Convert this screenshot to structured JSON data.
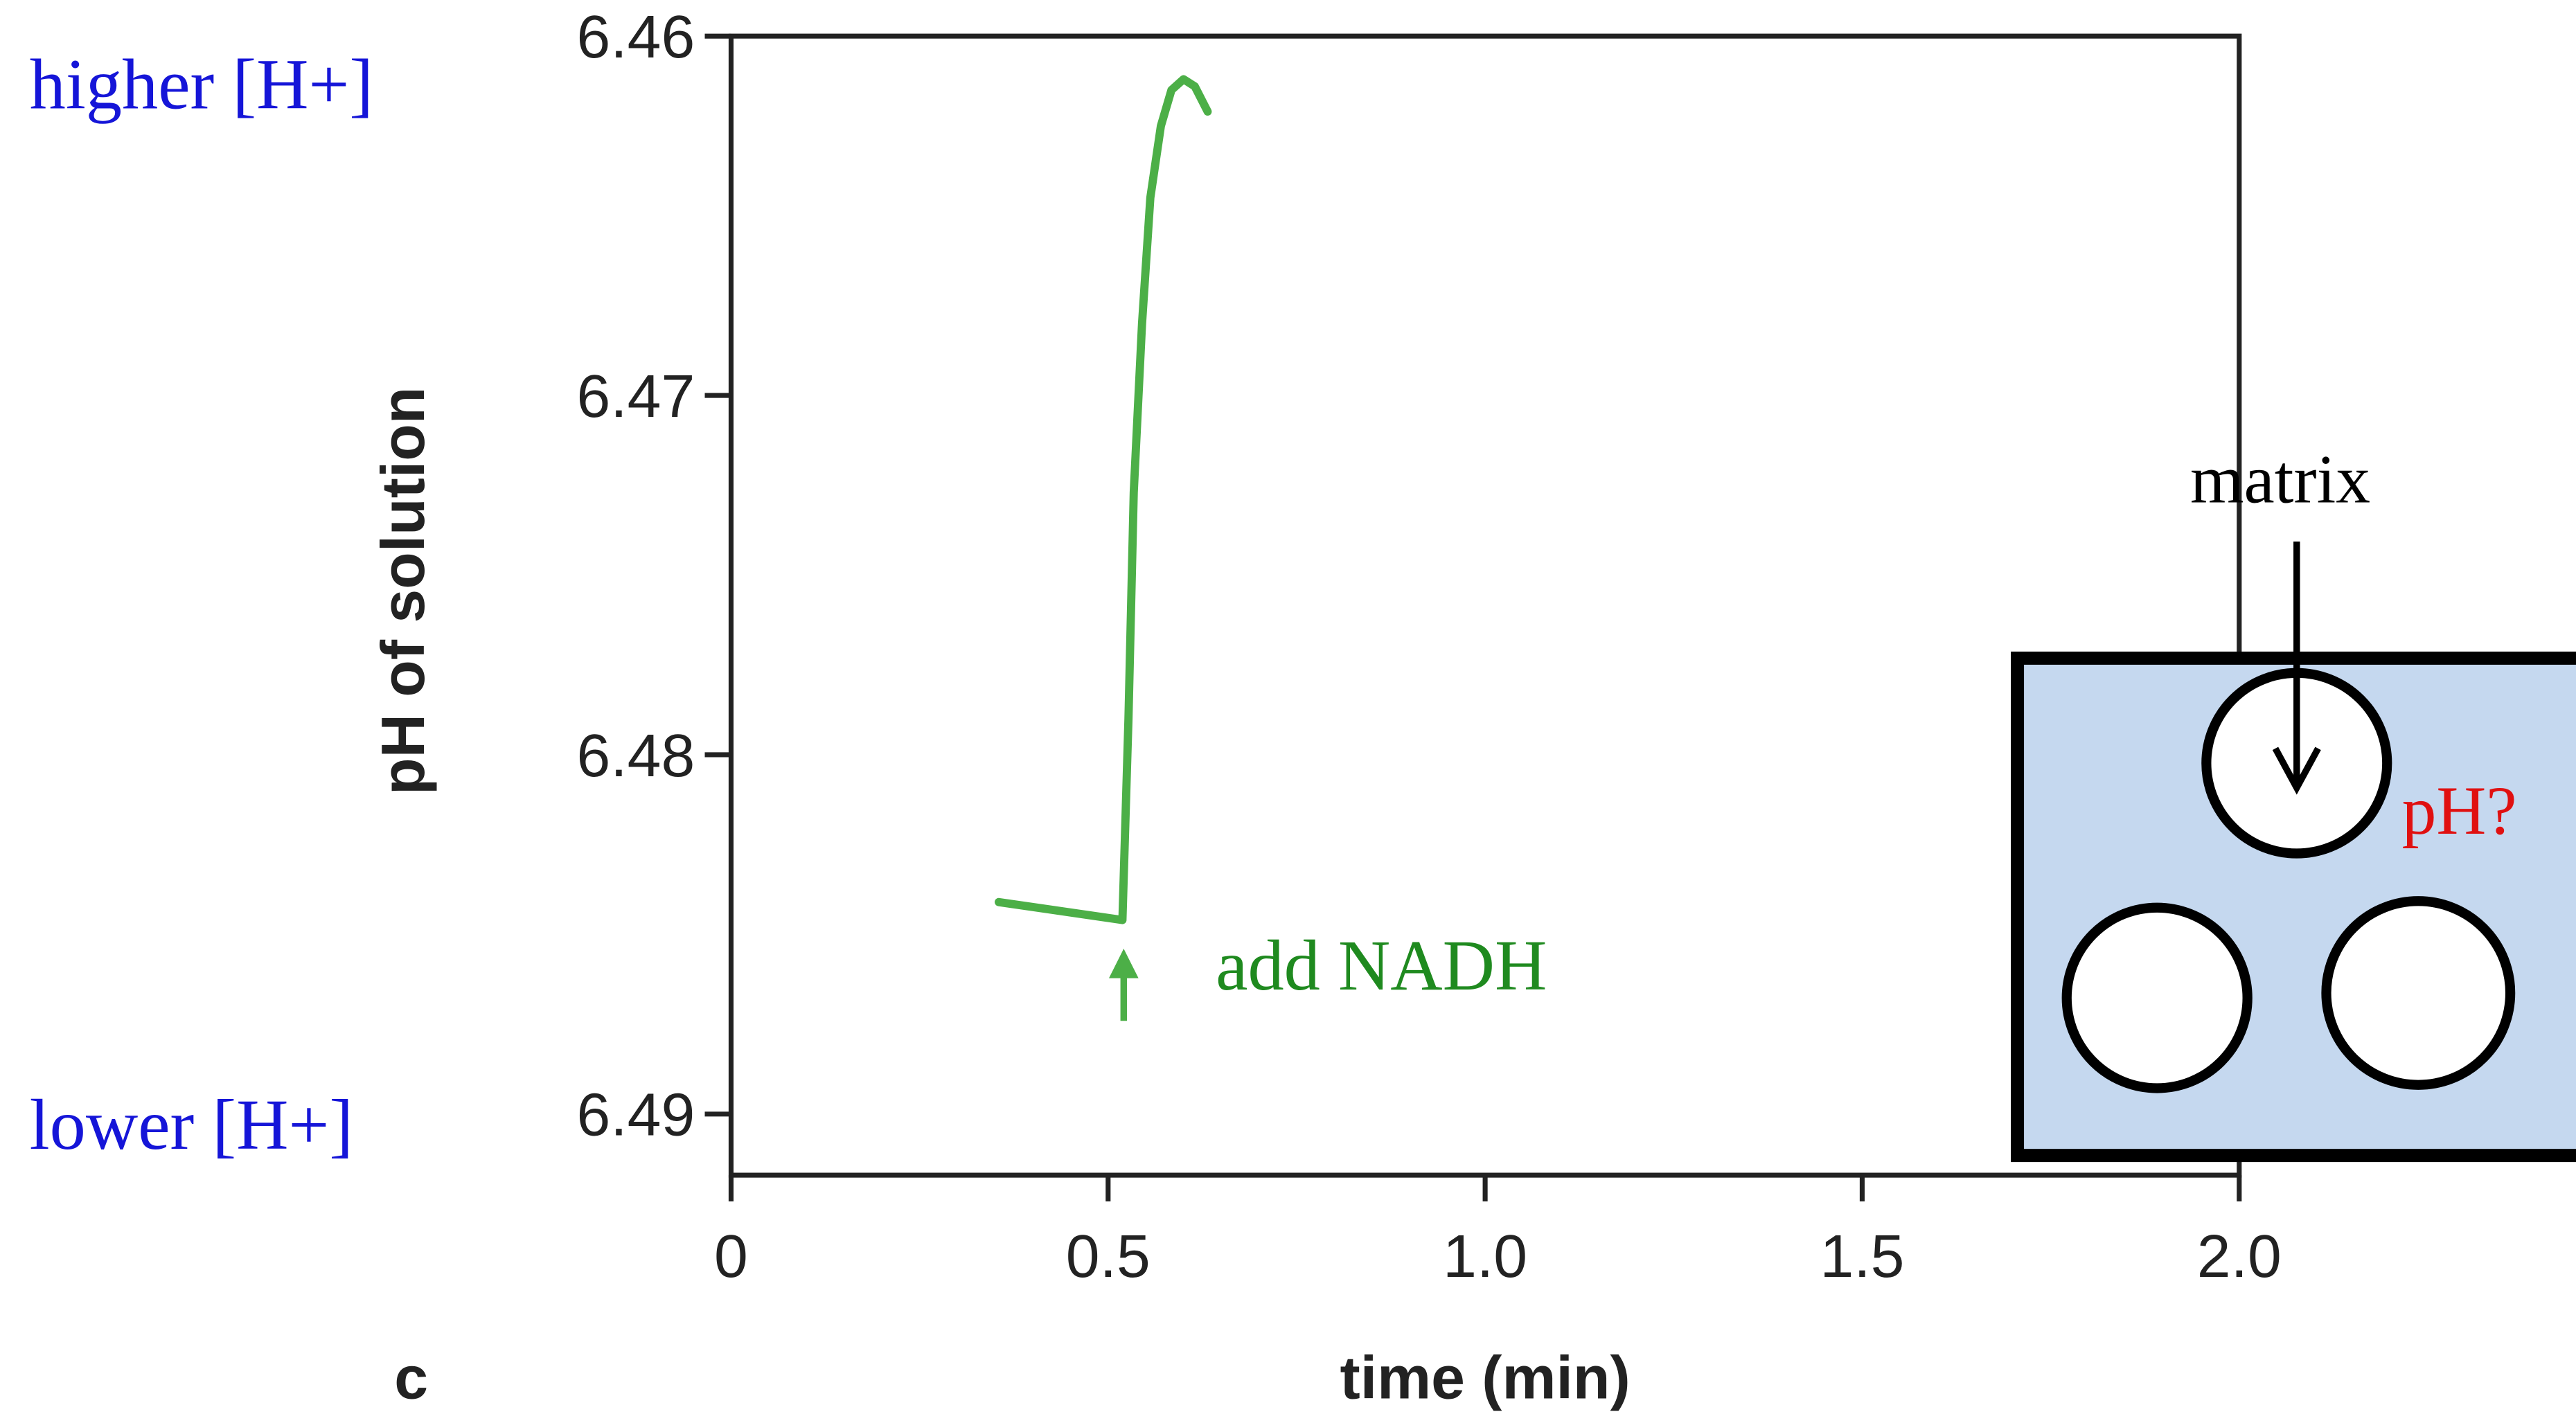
{
  "chart_data": {
    "type": "line",
    "xlabel": "time (min)",
    "ylabel": "pH of solution",
    "panel_label": "c",
    "x": [
      0.355,
      0.519,
      0.527,
      0.534,
      0.545,
      0.556,
      0.57,
      0.584,
      0.6,
      0.615,
      0.632
    ],
    "series": [
      {
        "name": "pH",
        "color": "#4caf47",
        "values": [
          6.4841,
          6.4846,
          6.479,
          6.4727,
          6.468,
          6.4645,
          6.4625,
          6.4615,
          6.4612,
          6.4614,
          6.4621
        ]
      }
    ],
    "xlim": [
      0,
      2
    ],
    "xticks": [
      0,
      0.5,
      {
        "value": 1,
        "label": "1.0"
      },
      1.5,
      {
        "value": 2,
        "label": "2.0"
      }
    ],
    "ylim": [
      6.4917,
      6.46
    ],
    "yticks": [
      6.46,
      6.47,
      6.48,
      6.49
    ],
    "annotations": {
      "higher": "higher  [H+]",
      "lower": "lower [H+]",
      "event": "add NADH",
      "matrix": "matrix",
      "question": "pH?"
    }
  }
}
